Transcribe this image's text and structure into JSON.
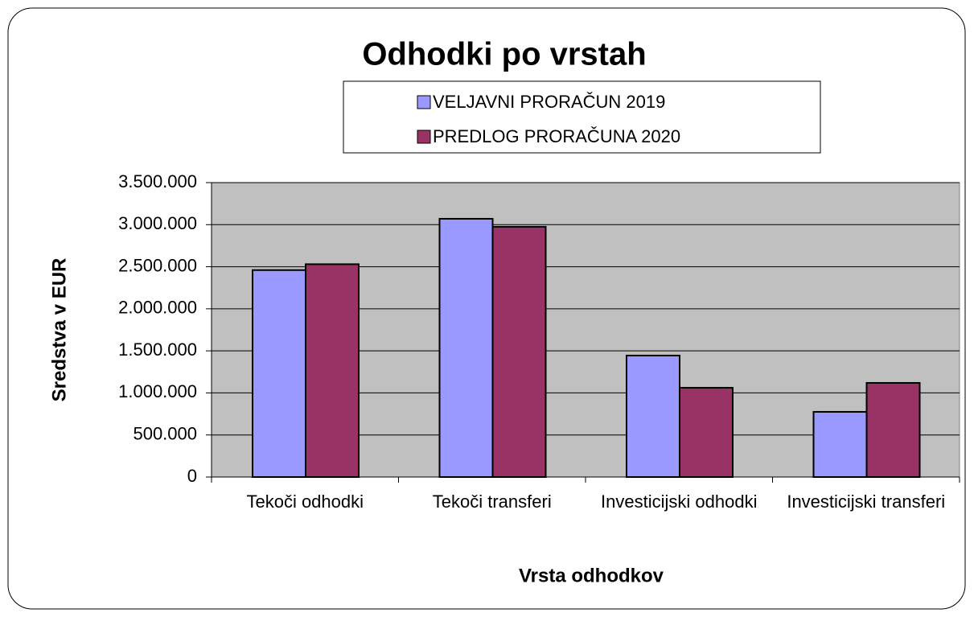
{
  "chart_data": {
    "type": "bar",
    "title": "Odhodki po vrstah",
    "x_label": "Vrsta odhodkov",
    "y_label": "Sredstva v EUR",
    "categories": [
      "Tekoči odhodki",
      "Tekoči transferi",
      "Investicijski odhodki",
      "Investicijski transferi"
    ],
    "series": [
      {
        "name": "VELJAVNI PRORAČUN 2019",
        "color": "#9999ff",
        "values": [
          2460000,
          3070000,
          1444000,
          775000
        ]
      },
      {
        "name": "PREDLOG PRORAČUNA 2020",
        "color": "#993366",
        "values": [
          2530000,
          2975000,
          1061000,
          1119000
        ]
      }
    ],
    "ylim": [
      0,
      3500000
    ],
    "yticks": [
      0,
      {
        "value": 500000,
        "label": "500.000"
      },
      {
        "value": 1000000,
        "label": "1.000.000"
      },
      {
        "value": 1500000,
        "label": "1.500.000"
      },
      {
        "value": 2000000,
        "label": "2.000.000"
      },
      {
        "value": 2500000,
        "label": "2.500.000"
      },
      {
        "value": 3000000,
        "label": "3.000.000"
      },
      {
        "value": 3500000,
        "label": "3.500.000"
      }
    ],
    "grid": true,
    "plot_background": "#c0c0c0"
  }
}
